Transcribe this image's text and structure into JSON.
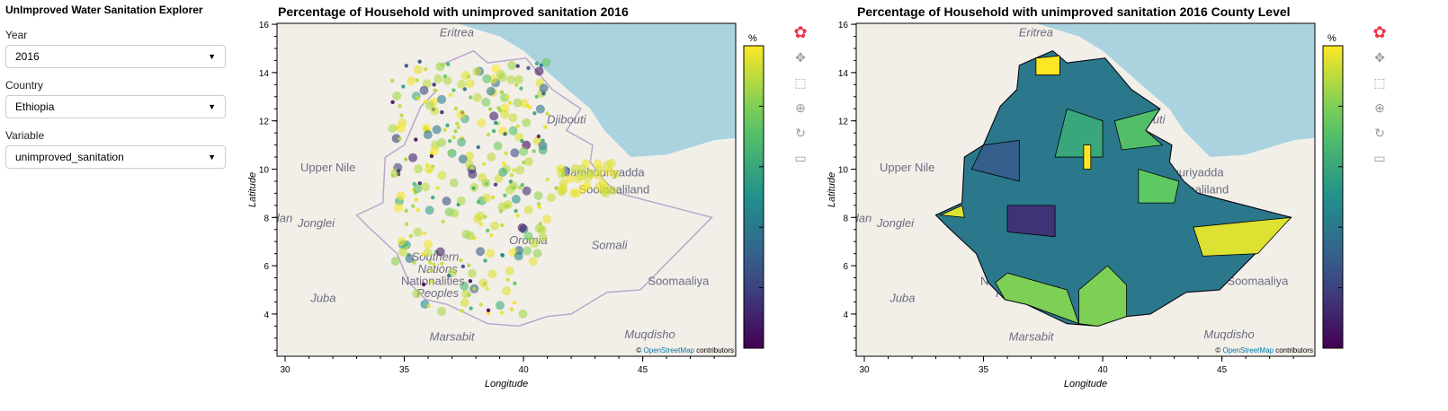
{
  "sidebar": {
    "title": "UnImproved Water Sanitation Explorer",
    "year": {
      "label": "Year",
      "value": "2016"
    },
    "country": {
      "label": "Country",
      "value": "Ethiopia"
    },
    "variable": {
      "label": "Variable",
      "value": "unimproved_sanitation"
    }
  },
  "plots": [
    {
      "title": "Percentage of Household with unimproved sanitation 2016",
      "kind": "points"
    },
    {
      "title": "Percentage of Household with unimproved sanitation 2016 County Level",
      "kind": "regions"
    }
  ],
  "axes": {
    "xlabel": "Longitude",
    "ylabel": "Latitude",
    "xticks": [
      30,
      35,
      40,
      45
    ],
    "yticks": [
      4,
      6,
      8,
      10,
      12,
      14,
      16
    ],
    "xlim": [
      29.66,
      48.9
    ],
    "ylim": [
      2.25,
      16.04
    ]
  },
  "colorbar": {
    "label": "%",
    "ticks": [
      "0",
      "0.2",
      "0.4",
      "0.6",
      "0.8",
      "1"
    ],
    "range": [
      0,
      1
    ],
    "colormap": "viridis"
  },
  "attribution": {
    "prefix": "© ",
    "link": "OpenStreetMap",
    "suffix": " contributors"
  },
  "map_labels": [
    {
      "t": "Eritrea",
      "lon": 37.2,
      "lat": 15.5
    },
    {
      "t": "Djibouti",
      "lon": 41.8,
      "lat": 11.9
    },
    {
      "t": "Jamhuuriyadda",
      "lon": 43.4,
      "lat": 9.7
    },
    {
      "t": "Soomaaliland",
      "lon": 43.8,
      "lat": 9.0
    },
    {
      "t": "Upper Nile",
      "lon": 31.8,
      "lat": 9.9
    },
    {
      "t": "Jonglei",
      "lon": 31.3,
      "lat": 7.6
    },
    {
      "t": "Somali",
      "lon": 43.6,
      "lat": 6.7
    },
    {
      "t": "Oromia",
      "lon": 40.2,
      "lat": 6.9
    },
    {
      "t": "Soomaaliya",
      "lon": 46.5,
      "lat": 5.2
    },
    {
      "t": "Juba",
      "lon": 31.6,
      "lat": 4.5
    },
    {
      "t": "Marsabit",
      "lon": 37.0,
      "lat": 2.9
    },
    {
      "t": "Muqdisho",
      "lon": 45.3,
      "lat": 3.0
    },
    {
      "t": "dan",
      "lon": 29.9,
      "lat": 7.8
    },
    {
      "t": "Southern",
      "lon": 36.3,
      "lat": 6.2
    },
    {
      "t": "Nations",
      "lon": 36.4,
      "lat": 5.7
    },
    {
      "t": "Nationalities",
      "lon": 36.2,
      "lat": 5.2
    },
    {
      "t": "Peoples",
      "lon": 36.4,
      "lat": 4.7
    }
  ],
  "toolbar": [
    "bokeh-logo-icon",
    "pan-icon",
    "box-zoom-icon",
    "wheel-zoom-icon",
    "reset-icon",
    "hover-icon"
  ]
}
